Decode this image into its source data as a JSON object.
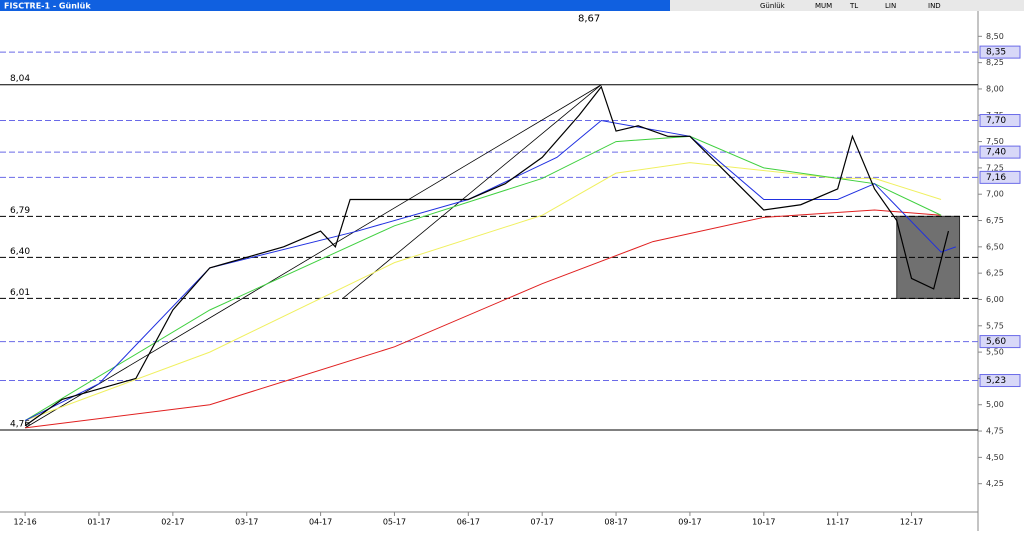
{
  "header": {
    "title": "FISCTRE-1 - Günlük",
    "menu": [
      "Günlük",
      "MUM",
      "TL",
      "LIN",
      "IND"
    ]
  },
  "chart_data": {
    "type": "line",
    "xlim": [
      -0.34,
      12.9
    ],
    "ylim": [
      4.0,
      8.75
    ],
    "xticks": [
      {
        "value": 0,
        "label": "12-16"
      },
      {
        "value": 1,
        "label": "01-17"
      },
      {
        "value": 2,
        "label": "02-17"
      },
      {
        "value": 3,
        "label": "03-17"
      },
      {
        "value": 4,
        "label": "04-17"
      },
      {
        "value": 5,
        "label": "05-17"
      },
      {
        "value": 6,
        "label": "06-17"
      },
      {
        "value": 7,
        "label": "07-17"
      },
      {
        "value": 8,
        "label": "08-17"
      },
      {
        "value": 9,
        "label": "09-17"
      },
      {
        "value": 10,
        "label": "10-17"
      },
      {
        "value": 11,
        "label": "11-17"
      },
      {
        "value": 12,
        "label": "12-17"
      }
    ],
    "yticks": [
      {
        "value": 4.25,
        "label": "4,25"
      },
      {
        "value": 4.5,
        "label": "4,50"
      },
      {
        "value": 4.75,
        "label": "4,75"
      },
      {
        "value": 5.0,
        "label": "5,00"
      },
      {
        "value": 5.25,
        "label": "5,25"
      },
      {
        "value": 5.5,
        "label": "5,50"
      },
      {
        "value": 5.75,
        "label": "5,75"
      },
      {
        "value": 6.0,
        "label": "6,00"
      },
      {
        "value": 6.25,
        "label": "6,25"
      },
      {
        "value": 6.5,
        "label": "6,50"
      },
      {
        "value": 6.75,
        "label": "6,75"
      },
      {
        "value": 7.0,
        "label": "7,00"
      },
      {
        "value": 7.25,
        "label": "7,25"
      },
      {
        "value": 7.5,
        "label": "7,50"
      },
      {
        "value": 7.75,
        "label": "7,75"
      },
      {
        "value": 8.0,
        "label": "8,00"
      },
      {
        "value": 8.25,
        "label": "8,25"
      },
      {
        "value": 8.5,
        "label": "8,50"
      }
    ],
    "levels": [
      {
        "value": 8.67,
        "label": "8,67",
        "style": "none",
        "side": "top"
      },
      {
        "value": 8.35,
        "label": "8,35",
        "style": "blue",
        "side": "right"
      },
      {
        "value": 8.04,
        "label": "8,04",
        "style": "solid",
        "side": "left"
      },
      {
        "value": 7.7,
        "label": "7,70",
        "style": "blue",
        "side": "right"
      },
      {
        "value": 7.4,
        "label": "7,40",
        "style": "blue",
        "side": "right"
      },
      {
        "value": 7.16,
        "label": "7,16",
        "style": "blue",
        "side": "right"
      },
      {
        "value": 6.79,
        "label": "6,79",
        "style": "black",
        "side": "left"
      },
      {
        "value": 6.4,
        "label": "6,40",
        "style": "black",
        "side": "left"
      },
      {
        "value": 6.01,
        "label": "6,01",
        "style": "black",
        "side": "left"
      },
      {
        "value": 5.6,
        "label": "5,60",
        "style": "blue",
        "side": "right"
      },
      {
        "value": 5.23,
        "label": "5,23",
        "style": "blue",
        "side": "right"
      },
      {
        "value": 4.76,
        "label": "4,76",
        "style": "solid",
        "side": "left"
      }
    ],
    "lines": [
      {
        "color": "#e02020",
        "x": [
          0,
          2.5,
          5,
          7,
          8.5,
          10,
          11.5,
          12.4
        ],
        "values": [
          4.78,
          5.0,
          5.55,
          6.15,
          6.55,
          6.78,
          6.85,
          6.8
        ]
      },
      {
        "color": "#f0f060",
        "x": [
          0,
          2.5,
          5,
          7,
          8,
          9,
          11,
          11.5,
          12.4
        ],
        "values": [
          4.85,
          5.5,
          6.35,
          6.8,
          7.2,
          7.3,
          7.15,
          7.15,
          6.95
        ]
      },
      {
        "color": "#40d040",
        "x": [
          0,
          2.5,
          5,
          7,
          8,
          9,
          10,
          11,
          11.5,
          12.4
        ],
        "values": [
          4.85,
          5.9,
          6.7,
          7.15,
          7.5,
          7.55,
          7.25,
          7.15,
          7.1,
          6.8
        ]
      },
      {
        "color": "#2030e0",
        "x": [
          0,
          1,
          2.5,
          4.5,
          6,
          7.2,
          7.8,
          9,
          10,
          11,
          11.5,
          12.4,
          12.6
        ],
        "values": [
          4.85,
          5.2,
          6.3,
          6.65,
          6.95,
          7.35,
          7.7,
          7.55,
          6.95,
          6.95,
          7.1,
          6.45,
          6.5
        ]
      },
      {
        "color": "#000000",
        "x": [
          0,
          0.5,
          1,
          1.5,
          2,
          2.5,
          3,
          3.5,
          4,
          4.2,
          4.4,
          4.8,
          5.5,
          6,
          6.5,
          7,
          7.5,
          7.8,
          8,
          8.3,
          8.7,
          9,
          9.5,
          10,
          10.5,
          11,
          11.2,
          11.5,
          11.8,
          12,
          12.3,
          12.5
        ],
        "values": [
          4.8,
          5.05,
          5.15,
          5.25,
          5.9,
          6.3,
          6.4,
          6.5,
          6.65,
          6.5,
          6.95,
          6.95,
          6.95,
          6.95,
          7.1,
          7.35,
          7.75,
          8.02,
          7.6,
          7.65,
          7.55,
          7.55,
          7.2,
          6.85,
          6.9,
          7.05,
          7.55,
          7.05,
          6.75,
          6.2,
          6.1,
          6.65
        ]
      }
    ],
    "trendlines": [
      {
        "x": [
          0,
          7.8
        ],
        "values": [
          4.78,
          8.04
        ]
      },
      {
        "x": [
          4.3,
          7.8
        ],
        "values": [
          6.01,
          8.04
        ]
      }
    ],
    "box": {
      "x": [
        11.8,
        12.65
      ],
      "values": [
        6.01,
        6.79
      ]
    }
  }
}
